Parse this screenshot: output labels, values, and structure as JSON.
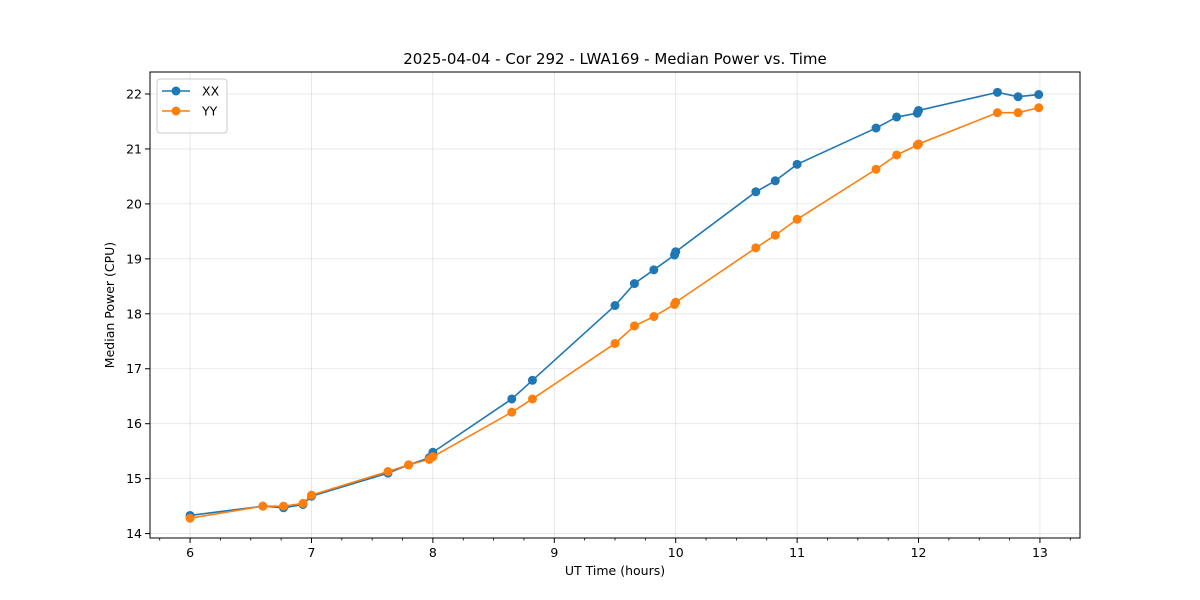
{
  "chart_data": {
    "type": "line",
    "title": "2025-04-04 - Cor 292 - LWA169 - Median Power vs. Time",
    "xlabel": "UT Time (hours)",
    "ylabel": "Median Power (CPU)",
    "xlim": [
      5.67,
      13.33
    ],
    "ylim": [
      13.92,
      22.4
    ],
    "xticks": [
      6,
      7,
      8,
      9,
      10,
      11,
      12,
      13
    ],
    "xticks_minor_step": 0.25,
    "yticks": [
      14,
      15,
      16,
      17,
      18,
      19,
      20,
      21,
      22
    ],
    "grid": true,
    "legend_position": "upper-left",
    "series": [
      {
        "name": "XX",
        "color": "#1f77b4",
        "x": [
          6.0,
          6.6,
          6.77,
          6.93,
          7.0,
          7.63,
          7.8,
          7.97,
          8.0,
          8.65,
          8.82,
          9.5,
          9.66,
          9.82,
          9.99,
          10.0,
          10.66,
          10.82,
          11.0,
          11.65,
          11.82,
          11.99,
          12.0,
          12.65,
          12.82,
          12.99
        ],
        "y": [
          14.33,
          14.5,
          14.47,
          14.53,
          14.68,
          15.1,
          15.25,
          15.38,
          15.48,
          16.45,
          16.79,
          18.15,
          18.55,
          18.8,
          19.07,
          19.13,
          20.22,
          20.42,
          20.72,
          21.38,
          21.58,
          21.65,
          21.7,
          22.03,
          21.95,
          21.99
        ]
      },
      {
        "name": "YY",
        "color": "#ff7f0e",
        "x": [
          6.0,
          6.6,
          6.77,
          6.93,
          7.0,
          7.63,
          7.8,
          7.97,
          8.0,
          8.65,
          8.82,
          9.5,
          9.66,
          9.82,
          9.99,
          10.0,
          10.66,
          10.82,
          11.0,
          11.65,
          11.82,
          11.99,
          12.0,
          12.65,
          12.82,
          12.99
        ],
        "y": [
          14.28,
          14.5,
          14.5,
          14.55,
          14.7,
          15.13,
          15.25,
          15.35,
          15.4,
          16.21,
          16.45,
          17.46,
          17.78,
          17.95,
          18.17,
          18.21,
          19.2,
          19.43,
          19.72,
          20.63,
          20.89,
          21.07,
          21.09,
          21.66,
          21.66,
          21.75
        ]
      }
    ]
  }
}
